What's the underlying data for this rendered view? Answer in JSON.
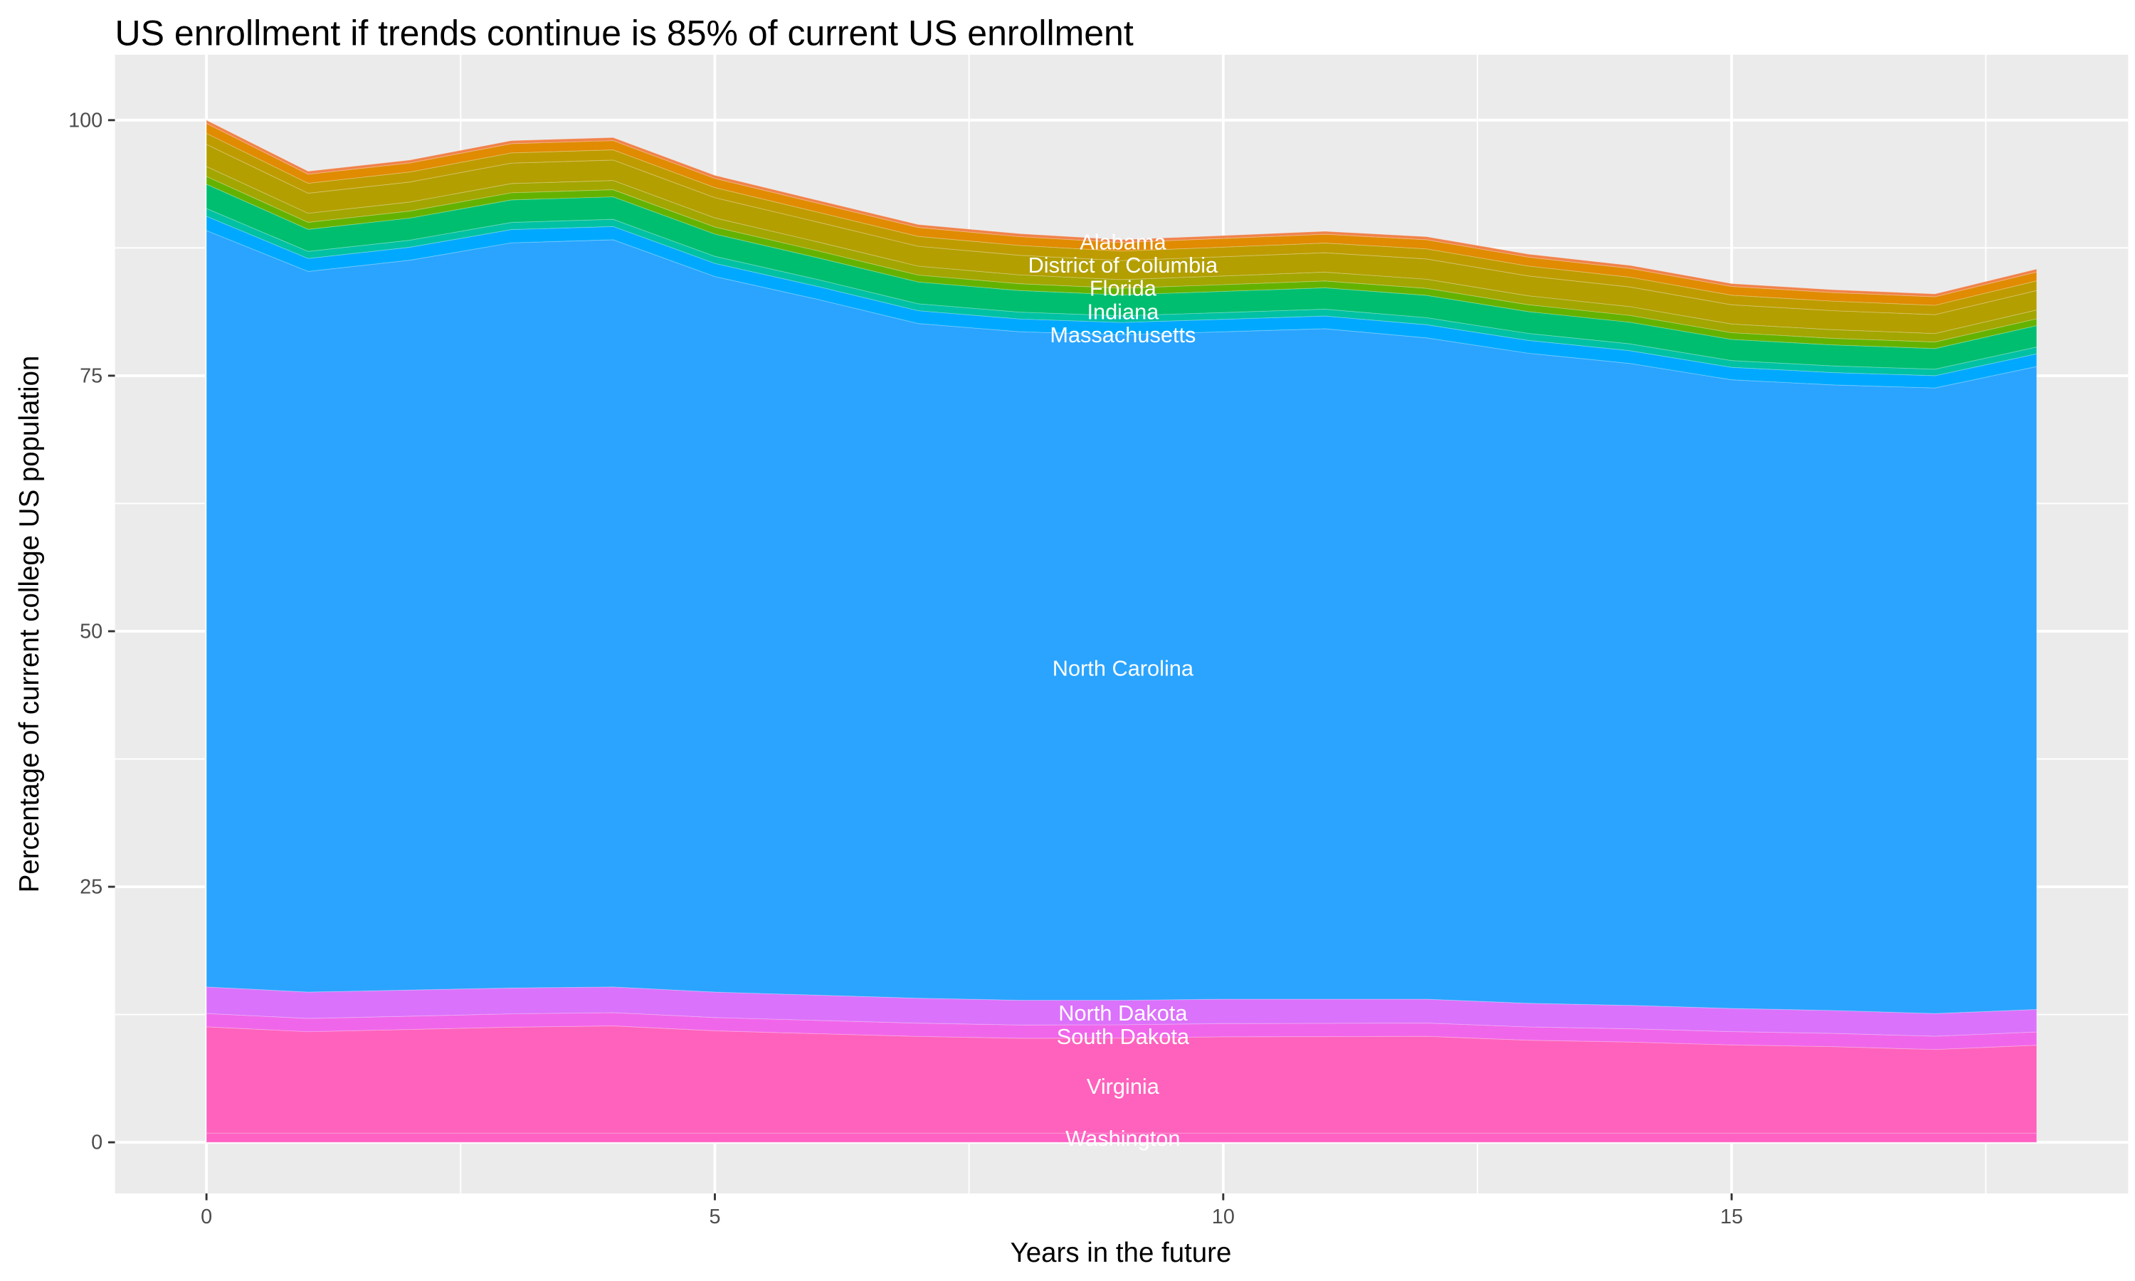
{
  "chart_data": {
    "type": "area",
    "stacked": true,
    "title": "US enrollment if trends continue is 85% of current US enrollment",
    "xlabel": "Years in the future",
    "ylabel": "Percentage of current college US population",
    "xlim": [
      -0.9,
      18.9
    ],
    "ylim": [
      -5,
      106.4
    ],
    "x_ticks": [
      0,
      5,
      10,
      15
    ],
    "y_ticks": [
      0,
      25,
      50,
      75,
      100
    ],
    "grid": true,
    "legend": "none",
    "x": [
      0,
      1,
      2,
      3,
      4,
      5,
      6,
      7,
      8,
      9,
      10,
      11,
      12,
      13,
      14,
      15,
      16,
      17,
      18
    ],
    "series": [
      {
        "name": "Washington",
        "color": "#FF61C3",
        "values": [
          0.9,
          0.9,
          0.9,
          0.9,
          0.9,
          0.9,
          0.9,
          0.9,
          0.9,
          0.9,
          0.9,
          0.9,
          0.9,
          0.9,
          0.9,
          0.9,
          0.9,
          0.9,
          0.9
        ]
      },
      {
        "name": "Virginia",
        "color": "#FF62BC",
        "values": [
          10.4,
          9.92,
          10.14,
          10.37,
          10.49,
          10.01,
          9.73,
          9.46,
          9.28,
          9.3,
          9.42,
          9.44,
          9.47,
          9.09,
          8.91,
          8.63,
          8.46,
          8.18,
          8.6
        ]
      },
      {
        "name": "South Dakota",
        "color": "#F066EA",
        "values": [
          1.3,
          1.3,
          1.3,
          1.3,
          1.3,
          1.3,
          1.3,
          1.3,
          1.3,
          1.3,
          1.3,
          1.3,
          1.3,
          1.3,
          1.3,
          1.3,
          1.3,
          1.3,
          1.3
        ]
      },
      {
        "name": "North Dakota",
        "color": "#DB72FB",
        "values": [
          2.6,
          2.58,
          2.56,
          2.53,
          2.51,
          2.49,
          2.47,
          2.44,
          2.42,
          2.4,
          2.38,
          2.36,
          2.33,
          2.31,
          2.29,
          2.27,
          2.24,
          2.22,
          2.2
        ]
      },
      {
        "name": "North Carolina",
        "color": "#2AA4FF",
        "values": [
          74.0,
          70.5,
          71.4,
          72.9,
          73.1,
          70.0,
          68.1,
          66.0,
          65.4,
          65.1,
          65.3,
          65.6,
          64.7,
          63.6,
          62.8,
          61.5,
          61.2,
          61.2,
          62.9
        ]
      },
      {
        "name": "Massachusetts",
        "color": "#00A9FF",
        "values": [
          1.4,
          1.27,
          1.27,
          1.3,
          1.3,
          1.29,
          1.26,
          1.26,
          1.25,
          1.21,
          1.22,
          1.24,
          1.29,
          1.26,
          1.25,
          1.22,
          1.21,
          1.2,
          1.24
        ]
      },
      {
        "color": "#00C1A3",
        "values": [
          0.76,
          0.69,
          0.69,
          0.7,
          0.7,
          0.69,
          0.68,
          0.68,
          0.67,
          0.65,
          0.66,
          0.67,
          0.69,
          0.68,
          0.67,
          0.66,
          0.65,
          0.64,
          0.67
        ]
      },
      {
        "name": "Indiana",
        "color": "#00BE70",
        "values": [
          2.38,
          2.16,
          2.16,
          2.2,
          2.2,
          2.18,
          2.13,
          2.13,
          2.11,
          2.05,
          2.07,
          2.09,
          2.18,
          2.13,
          2.11,
          2.07,
          2.05,
          2.02,
          2.09
        ]
      },
      {
        "color": "#64B200",
        "values": [
          0.76,
          0.69,
          0.69,
          0.7,
          0.7,
          0.69,
          0.68,
          0.68,
          0.67,
          0.65,
          0.66,
          0.67,
          0.69,
          0.68,
          0.67,
          0.66,
          0.65,
          0.64,
          0.67
        ]
      },
      {
        "color": "#A3A500",
        "values": [
          0.97,
          0.88,
          0.88,
          0.9,
          0.9,
          0.89,
          0.87,
          0.87,
          0.86,
          0.84,
          0.85,
          0.86,
          0.89,
          0.87,
          0.86,
          0.85,
          0.84,
          0.83,
          0.86
        ]
      },
      {
        "name": "Florida",
        "color": "#B39F00",
        "values": [
          2.16,
          1.96,
          1.96,
          2,
          2,
          1.98,
          1.94,
          1.94,
          1.92,
          1.86,
          1.88,
          1.9,
          1.98,
          1.94,
          1.92,
          1.88,
          1.86,
          1.84,
          1.9
        ]
      },
      {
        "color": "#BE9C00",
        "values": [
          1.08,
          0.98,
          0.98,
          1,
          1,
          0.99,
          0.97,
          0.97,
          0.96,
          0.93,
          0.94,
          0.95,
          0.99,
          0.97,
          0.96,
          0.94,
          0.93,
          0.92,
          0.95
        ]
      },
      {
        "name": "District of Columbia",
        "color": "#E08B00",
        "values": [
          0.97,
          0.88,
          0.88,
          0.9,
          0.9,
          0.89,
          0.87,
          0.87,
          0.86,
          0.84,
          0.85,
          0.86,
          0.89,
          0.87,
          0.86,
          0.85,
          0.84,
          0.83,
          0.86
        ]
      },
      {
        "name": "Alabama",
        "color": "#F0834B",
        "values": [
          0.32,
          0.29,
          0.29,
          0.3,
          0.3,
          0.3,
          0.29,
          0.29,
          0.29,
          0.28,
          0.28,
          0.29,
          0.3,
          0.29,
          0.29,
          0.28,
          0.28,
          0.28,
          0.29
        ]
      }
    ]
  }
}
